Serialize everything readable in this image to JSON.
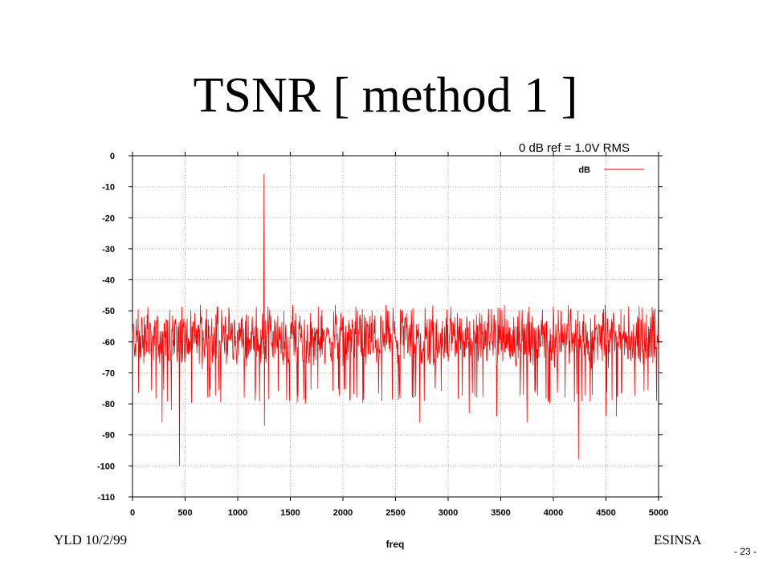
{
  "slide": {
    "title": "TSNR [ method 1 ]",
    "footer_left": "YLD 10/2/99",
    "footer_right": "ESINSA",
    "page_number": "- 23 -"
  },
  "chart_data": {
    "type": "line",
    "annotation": "0 dB ref = 1.0V RMS",
    "xlabel": "freq",
    "ylabel": "",
    "xlim": [
      0,
      5000
    ],
    "ylim": [
      -110,
      0
    ],
    "xticks": [
      0,
      500,
      1000,
      1500,
      2000,
      2500,
      3000,
      3500,
      4000,
      4500,
      5000
    ],
    "yticks": [
      0,
      -10,
      -20,
      -30,
      -40,
      -50,
      -60,
      -70,
      -80,
      -90,
      -100,
      -110
    ],
    "grid": true,
    "legend_position": "top-right",
    "series": [
      {
        "name": "dB",
        "color": "#ff0000",
        "noise_floor_mean": -59,
        "noise_floor_range": [
          -75,
          -50
        ],
        "peaks": [
          {
            "x": 1250,
            "y": -6
          },
          {
            "x": 280,
            "y": -86
          },
          {
            "x": 370,
            "y": -82
          },
          {
            "x": 445,
            "y": -100
          },
          {
            "x": 1060,
            "y": -78
          },
          {
            "x": 1255,
            "y": -87
          },
          {
            "x": 2730,
            "y": -86
          },
          {
            "x": 3200,
            "y": -83
          },
          {
            "x": 3460,
            "y": -84
          },
          {
            "x": 3750,
            "y": -86
          },
          {
            "x": 4240,
            "y": -98
          },
          {
            "x": 4500,
            "y": -84
          },
          {
            "x": 4600,
            "y": -84
          },
          {
            "x": 4980,
            "y": -79
          }
        ]
      }
    ]
  }
}
